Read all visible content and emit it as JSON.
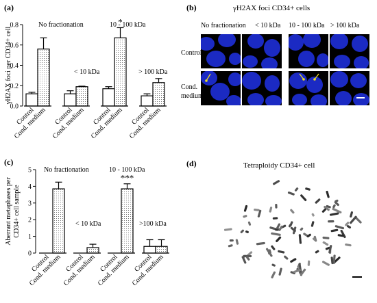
{
  "panels": {
    "a": {
      "letter": "(a)"
    },
    "b": {
      "letter": "(b)",
      "title": "γH2AX foci CD34+ cells",
      "col_labels": [
        "No fractionation",
        "< 10 kDa",
        "10 - 100 kDa",
        "> 100 kDa"
      ],
      "row_labels": [
        "Control",
        "Cond.\nmedium"
      ],
      "row_label_lines": [
        [
          "Control"
        ],
        [
          "Cond.",
          "medium"
        ]
      ]
    },
    "c": {
      "letter": "(c)"
    },
    "d": {
      "letter": "(d)",
      "title": "Tetraploidy CD34+ cell"
    }
  },
  "colors": {
    "nucleus": "#1e2fd8",
    "background": "#000000",
    "arrow": "#f2e01e",
    "bar_fill": "#ffffff",
    "bar_stroke": "#000000"
  },
  "chart_data": [
    {
      "type": "bar",
      "panel": "a",
      "ylabel": "γH2AX foci per CD34+ cell",
      "ylim": [
        0,
        0.8
      ],
      "yticks": [
        0.0,
        0.2,
        0.4,
        0.6,
        0.8
      ],
      "categories": [
        "Control",
        "Cond. medium",
        "Control",
        "Cond. medium",
        "Control",
        "Cond. medium",
        "Control",
        "Cond. medium"
      ],
      "groups": [
        "No fractionation",
        "< 10 kDa",
        "10 - 100 kDa",
        "> 100 kDa"
      ],
      "values": [
        0.12,
        0.56,
        0.12,
        0.19,
        0.17,
        0.67,
        0.1,
        0.23
      ],
      "errors": [
        0.015,
        0.11,
        0.03,
        0.005,
        0.02,
        0.1,
        0.02,
        0.04
      ],
      "patterned": [
        false,
        true,
        false,
        true,
        false,
        true,
        false,
        true
      ],
      "annotations": [
        {
          "bar_index": 5,
          "text": "*"
        }
      ]
    },
    {
      "type": "bar",
      "panel": "c",
      "ylabel_lines": [
        "Aberrant metaphases per",
        "CD34+ cell sample"
      ],
      "ylim": [
        0,
        5
      ],
      "yticks": [
        0,
        1,
        2,
        3,
        4,
        5
      ],
      "categories": [
        "Control",
        "Cond. medium",
        "Control",
        "Cond. medium",
        "Control",
        "Cond. medium",
        "Control",
        "Cond. medium"
      ],
      "groups": [
        "No fractionation",
        "< 10 kDa",
        "10 - 100 kDa",
        ">100 kDa"
      ],
      "values": [
        0,
        3.85,
        0,
        0.33,
        0,
        3.85,
        0.4,
        0.4
      ],
      "errors": [
        0,
        0.4,
        0,
        0.2,
        0,
        0.3,
        0.4,
        0.4
      ],
      "patterned": [
        false,
        true,
        false,
        true,
        false,
        true,
        false,
        true
      ],
      "annotations": [
        {
          "bar_index": 5,
          "text": "***"
        }
      ]
    }
  ]
}
